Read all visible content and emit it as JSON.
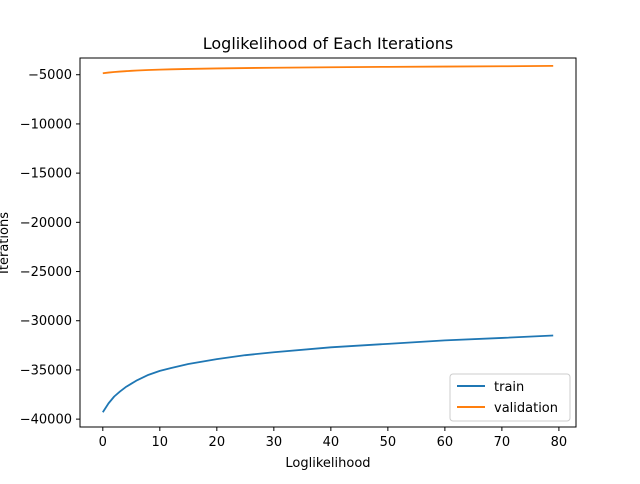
{
  "colors": {
    "train": "#1f77b4",
    "validation": "#ff7f0e"
  },
  "chart_data": {
    "type": "line",
    "title": "Loglikelihood of Each Iterations",
    "xlabel": "Loglikelihood",
    "ylabel": "Iterations",
    "xlim": [
      -4,
      83
    ],
    "ylim": [
      -40800,
      -3300
    ],
    "xticks": [
      0,
      10,
      20,
      30,
      40,
      50,
      60,
      70,
      80
    ],
    "yticks": [
      -40000,
      -35000,
      -30000,
      -25000,
      -20000,
      -15000,
      -10000,
      -5000
    ],
    "legend_position": "lower-right",
    "grid": false,
    "series": [
      {
        "name": "train",
        "x": [
          0,
          1,
          2,
          3,
          4,
          5,
          6,
          8,
          10,
          12,
          15,
          20,
          25,
          30,
          40,
          50,
          60,
          70,
          79
        ],
        "y": [
          -39300,
          -38400,
          -37700,
          -37200,
          -36750,
          -36400,
          -36050,
          -35500,
          -35100,
          -34800,
          -34400,
          -33900,
          -33500,
          -33200,
          -32700,
          -32350,
          -32000,
          -31750,
          -31500
        ]
      },
      {
        "name": "validation",
        "x": [
          0,
          1,
          2,
          3,
          4,
          5,
          6,
          8,
          10,
          12,
          15,
          20,
          25,
          30,
          40,
          50,
          60,
          70,
          79
        ],
        "y": [
          -4850,
          -4780,
          -4720,
          -4680,
          -4640,
          -4600,
          -4570,
          -4520,
          -4480,
          -4450,
          -4410,
          -4360,
          -4320,
          -4290,
          -4240,
          -4200,
          -4170,
          -4140,
          -4100
        ]
      }
    ]
  }
}
